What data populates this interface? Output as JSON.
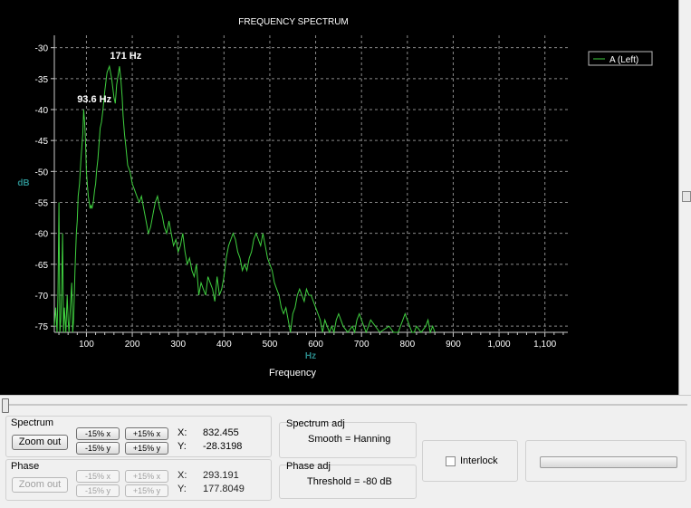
{
  "chart": {
    "title": "FREQUENCY SPECTRUM",
    "ylabel": "dB",
    "xunit": "Hz",
    "xlabel": "Frequency",
    "legend": "A (Left)",
    "annotations": [
      {
        "text": "93.6 Hz",
        "x": 93.6,
        "y": -40
      },
      {
        "text": "171 Hz",
        "x": 171,
        "y": -33
      }
    ],
    "colors": {
      "background": "#000000",
      "trace": "#3fcf3f",
      "grid": "#8a8a8a",
      "axis_label": "#2a8a8a"
    }
  },
  "chart_data": {
    "type": "line",
    "title": "FREQUENCY SPECTRUM",
    "xlabel": "Frequency",
    "ylabel": "dB",
    "xlim": [
      30,
      1150
    ],
    "ylim": [
      -76,
      -28
    ],
    "xticks": [
      100,
      200,
      300,
      400,
      500,
      600,
      700,
      800,
      900,
      1000,
      1100
    ],
    "xtick_labels": [
      "100",
      "200",
      "300",
      "400",
      "500",
      "600",
      "700",
      "800",
      "900",
      "1,000",
      "1,100"
    ],
    "yticks": [
      -30,
      -35,
      -40,
      -45,
      -50,
      -55,
      -60,
      -65,
      -70,
      -75
    ],
    "grid": true,
    "legend_position": "top-right",
    "series": [
      {
        "name": "A (Left)",
        "x": [
          30,
          33,
          36,
          38,
          40,
          42,
          44,
          46,
          48,
          50,
          52,
          55,
          58,
          60,
          62,
          65,
          68,
          70,
          72,
          75,
          78,
          80,
          82,
          85,
          88,
          90,
          92,
          94,
          96,
          98,
          100,
          102,
          104,
          106,
          108,
          110,
          112,
          115,
          118,
          120,
          122,
          125,
          128,
          130,
          133,
          136,
          140,
          145,
          150,
          155,
          160,
          163,
          166,
          170,
          172,
          175,
          178,
          180,
          183,
          186,
          190,
          195,
          200,
          205,
          210,
          215,
          220,
          225,
          230,
          235,
          240,
          245,
          250,
          255,
          260,
          265,
          270,
          275,
          280,
          285,
          290,
          295,
          300,
          305,
          310,
          315,
          320,
          325,
          330,
          335,
          340,
          345,
          350,
          355,
          360,
          365,
          370,
          375,
          380,
          385,
          390,
          395,
          400,
          405,
          410,
          415,
          420,
          425,
          430,
          435,
          440,
          445,
          450,
          455,
          460,
          465,
          470,
          475,
          480,
          485,
          490,
          495,
          500,
          505,
          510,
          515,
          520,
          525,
          530,
          535,
          540,
          545,
          550,
          555,
          560,
          565,
          570,
          575,
          580,
          585,
          590,
          595,
          600,
          605,
          610,
          615,
          620,
          625,
          630,
          635,
          640,
          645,
          650,
          655,
          660,
          670,
          680,
          685,
          690,
          695,
          700,
          705,
          710,
          715,
          720,
          740,
          760,
          770,
          780,
          785,
          790,
          795,
          800,
          805,
          810,
          815,
          820,
          830,
          840,
          845,
          850,
          855,
          860
        ],
        "y": [
          -75,
          -72,
          -76,
          -70,
          -55,
          -76,
          -74,
          -69,
          -60,
          -76,
          -72,
          -76,
          -70,
          -74,
          -76,
          -72,
          -68,
          -76,
          -74,
          -66,
          -60,
          -58,
          -54,
          -52,
          -48,
          -46,
          -44,
          -40,
          -42,
          -45,
          -50,
          -52,
          -54,
          -55,
          -56,
          -55.5,
          -56,
          -55,
          -53,
          -52,
          -50,
          -48,
          -45,
          -43,
          -42,
          -40,
          -37,
          -34,
          -33,
          -35,
          -38,
          -39,
          -36,
          -34,
          -33,
          -35,
          -38,
          -41,
          -44,
          -46,
          -49,
          -50,
          -52,
          -53,
          -54,
          -55,
          -54,
          -56,
          -58,
          -60,
          -59,
          -57,
          -55,
          -54,
          -56,
          -57,
          -59,
          -60,
          -58,
          -60,
          -62,
          -61,
          -63,
          -62,
          -60,
          -63,
          -65,
          -64,
          -66,
          -67,
          -65,
          -70,
          -68,
          -69,
          -70,
          -67,
          -68,
          -69,
          -71,
          -67,
          -70,
          -69,
          -67,
          -64,
          -62,
          -61,
          -60,
          -61,
          -63,
          -64,
          -66,
          -65,
          -66,
          -64,
          -63,
          -61,
          -60,
          -61,
          -62,
          -60,
          -62,
          -64,
          -65,
          -66,
          -68,
          -69,
          -70,
          -72,
          -73,
          -72,
          -74,
          -76,
          -73,
          -72,
          -70,
          -69,
          -70,
          -71,
          -69,
          -70,
          -70,
          -71,
          -72,
          -73,
          -74,
          -76,
          -74,
          -75,
          -76,
          -75,
          -76,
          -74,
          -73,
          -74,
          -75,
          -76,
          -75,
          -76,
          -74,
          -73,
          -74,
          -75,
          -76,
          -75,
          -74,
          -76,
          -75,
          -76,
          -76,
          -75,
          -74,
          -73,
          -74,
          -75,
          -76,
          -76,
          -75,
          -76,
          -75,
          -74,
          -76,
          -75,
          -76
        ]
      }
    ]
  },
  "controls": {
    "spectrum": {
      "label": "Spectrum",
      "zoom_out": "Zoom out",
      "minus_x": "-15% x",
      "plus_x": "+15% x",
      "minus_y": "-15% y",
      "plus_y": "+15% y",
      "x_label": "X:",
      "x_value": "832.455",
      "y_label": "Y:",
      "y_value": "-28.3198"
    },
    "phase": {
      "label": "Phase",
      "zoom_out": "Zoom out",
      "minus_x": "-15% x",
      "plus_x": "+15% x",
      "minus_y": "-15% y",
      "plus_y": "+15% y",
      "x_label": "X:",
      "x_value": "293.191",
      "y_label": "Y:",
      "y_value": "177.8049"
    },
    "spectrum_adj": {
      "label": "Spectrum adj",
      "value": "Smooth = Hanning"
    },
    "phase_adj": {
      "label": "Phase adj",
      "value": "Threshold = -80 dB"
    },
    "interlock": {
      "label": "Interlock",
      "checked": false
    }
  }
}
